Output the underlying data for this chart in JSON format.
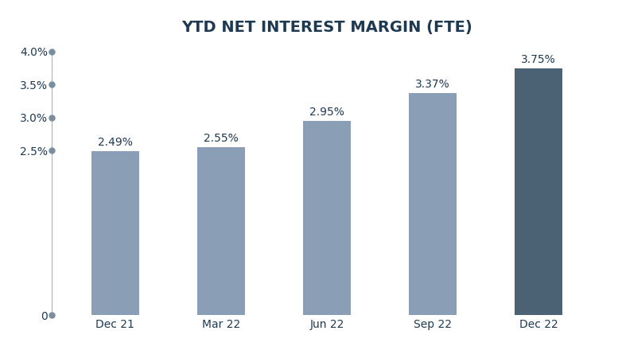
{
  "title": "YTD NET INTEREST MARGIN (FTE)",
  "categories": [
    "Dec 21",
    "Mar 22",
    "Jun 22",
    "Sep 22",
    "Dec 22"
  ],
  "values": [
    2.49,
    2.55,
    2.95,
    3.37,
    3.75
  ],
  "labels": [
    "2.49%",
    "2.55%",
    "2.95%",
    "3.37%",
    "3.75%"
  ],
  "bar_colors": [
    "#8a9eb5",
    "#8a9eb5",
    "#8a9eb5",
    "#8a9eb5",
    "#4a6274"
  ],
  "ylim": [
    0,
    4.0
  ],
  "yticks": [
    0,
    2.5,
    3.0,
    3.5,
    4.0
  ],
  "ytick_labels": [
    "0",
    "2.5%",
    "3.0%",
    "3.5%",
    "4.0%"
  ],
  "background_color": "#ffffff",
  "title_color": "#1e3a52",
  "tick_color": "#1e3a52",
  "label_color": "#1e3a52",
  "axis_line_color": "#8a9eb5",
  "dot_color": "#7a8e9e",
  "title_fontsize": 14,
  "tick_fontsize": 10,
  "label_fontsize": 10
}
